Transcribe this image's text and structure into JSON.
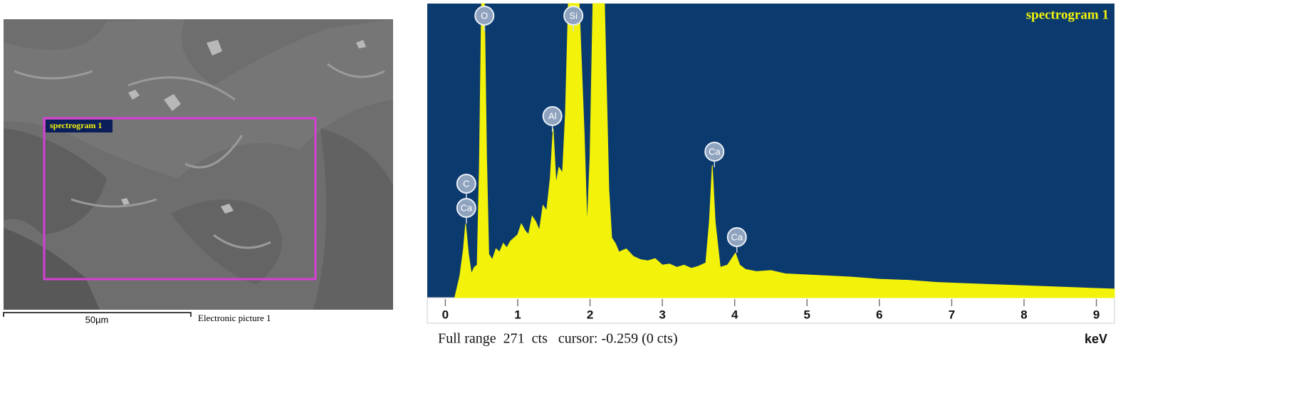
{
  "sem_image": {
    "region_label": "spectrogram 1",
    "scale_bar": "50µm",
    "caption": "Electronic picture 1"
  },
  "chart_data": {
    "type": "area",
    "title": "spectrogram 1",
    "x_label": "keV",
    "footer": "Full range  271  cts   cursor: -0.259 (0 cts)",
    "color": "#f2f20a",
    "background": "#0b3a6e",
    "xlim": [
      -0.25,
      9.25
    ],
    "ylim": [
      0,
      271
    ],
    "xticks": [
      0,
      1,
      2,
      3,
      4,
      5,
      6,
      7,
      8,
      9
    ],
    "x": [
      0.13,
      0.2,
      0.25,
      0.28,
      0.32,
      0.36,
      0.4,
      0.44,
      0.47,
      0.5,
      0.54,
      0.57,
      0.6,
      0.65,
      0.7,
      0.75,
      0.8,
      0.85,
      0.9,
      0.95,
      1.0,
      1.05,
      1.1,
      1.15,
      1.2,
      1.25,
      1.3,
      1.35,
      1.4,
      1.45,
      1.49,
      1.53,
      1.57,
      1.62,
      1.66,
      1.7,
      1.75,
      1.85,
      1.92,
      1.96,
      2.0,
      2.04,
      2.1,
      2.2,
      2.26,
      2.3,
      2.35,
      2.4,
      2.5,
      2.6,
      2.7,
      2.8,
      2.9,
      3.0,
      3.1,
      3.2,
      3.3,
      3.4,
      3.5,
      3.6,
      3.65,
      3.69,
      3.73,
      3.8,
      3.9,
      3.95,
      4.01,
      4.07,
      4.15,
      4.3,
      4.5,
      4.7,
      5.0,
      5.3,
      5.6,
      6.0,
      6.4,
      6.8,
      7.2,
      7.6,
      8.0,
      8.4,
      8.8,
      9.25
    ],
    "values": [
      0,
      20,
      45,
      68,
      40,
      22,
      28,
      30,
      120,
      271,
      271,
      130,
      40,
      35,
      45,
      42,
      50,
      46,
      52,
      55,
      58,
      68,
      62,
      58,
      75,
      70,
      62,
      85,
      80,
      110,
      156,
      105,
      120,
      115,
      170,
      271,
      271,
      271,
      150,
      65,
      130,
      271,
      271,
      271,
      100,
      55,
      50,
      42,
      45,
      38,
      35,
      34,
      36,
      30,
      31,
      28,
      30,
      27,
      29,
      32,
      70,
      122,
      70,
      28,
      30,
      35,
      41,
      30,
      26,
      24,
      25,
      22,
      21,
      20,
      19,
      17,
      16,
      14,
      13,
      12,
      11,
      10,
      9,
      8
    ],
    "annotations": [
      {
        "text": "C",
        "x": 0.29
      },
      {
        "text": "Ca",
        "x": 0.29
      },
      {
        "text": "O",
        "x": 0.54
      },
      {
        "text": "Al",
        "x": 1.48
      },
      {
        "text": "Si",
        "x": 1.77
      },
      {
        "text": "Ca",
        "x": 3.72
      },
      {
        "text": "Ca",
        "x": 4.03
      }
    ]
  }
}
